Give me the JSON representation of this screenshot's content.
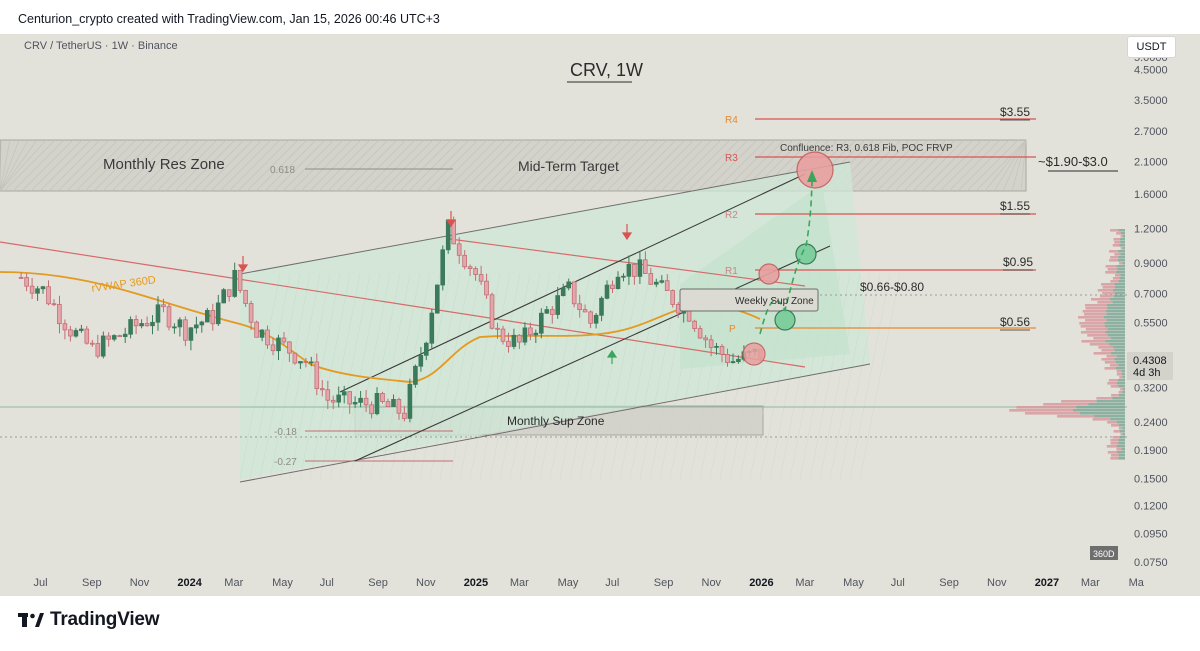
{
  "header": {
    "credit": "Centurion_crypto created with TradingView.com, Jan 15, 2026 00:46 UTC+3",
    "pair": "CRV / TetherUS · 1W · Binance",
    "currency_button": "USDT"
  },
  "footer": {
    "brand": "TradingView"
  },
  "price_badge": {
    "price": "0.4308",
    "countdown": "4d 3h",
    "indicator_tag": "360D"
  },
  "colors": {
    "background": "#e3e2da",
    "up_candle": "#3b7a5a",
    "down_candle": "#c26d74",
    "channel_fill": "#bfe3cc",
    "vwap": "#e39a1f",
    "pivot_red": "#d9534f",
    "pivot_orange": "#e8872f"
  },
  "annotations": {
    "title": "CRV, 1W",
    "monthly_res_zone": "Monthly Res Zone",
    "mid_term_target": "Mid-Term Target",
    "confluence": "Confluence: R3, 0.618 Fib, POC FRVP",
    "target_range": "~$1.90-$3.0",
    "weekly_sup_zone": "Weekly Sup Zone",
    "monthly_sup_zone": "Monthly Sup Zone",
    "vwap_label": "rVWAP 360D",
    "zone_range": "$0.66-$0.80",
    "fib_618": "0.618",
    "fib_m018": "-0.18",
    "fib_m027": "-0.27",
    "levels": [
      {
        "pivot": "R4",
        "value": "$3.55"
      },
      {
        "pivot": "R3",
        "value": ""
      },
      {
        "pivot": "R2",
        "value": "$1.55"
      },
      {
        "pivot": "R1",
        "value": "$0.95"
      },
      {
        "pivot": "P",
        "value": "$0.56"
      }
    ]
  },
  "chart_data": {
    "type": "candlestick",
    "title": "CRV, 1W",
    "y_scale": "log",
    "ylim": [
      0.068,
      7.0
    ],
    "y_ticks": [
      "5.0000",
      "4.5000",
      "3.5000",
      "2.7000",
      "2.1000",
      "1.6000",
      "1.2000",
      "0.9000",
      "0.7000",
      "0.5500",
      "0.4308",
      "0.3200",
      "0.2400",
      "0.1900",
      "0.1500",
      "0.1200",
      "0.0950",
      "0.0750"
    ],
    "x_ticks": [
      "Jul",
      "Sep",
      "Nov",
      "2024",
      "Mar",
      "May",
      "Jul",
      "Sep",
      "Nov",
      "2025",
      "Mar",
      "May",
      "Jul",
      "Sep",
      "Nov",
      "2026",
      "Mar",
      "May",
      "Jul",
      "Sep",
      "Nov",
      "2027",
      "Mar",
      "Ma"
    ],
    "last_price": 0.4308,
    "series": [
      {
        "name": "CRV / TetherUS",
        "points": [
          {
            "date": "2023-06-05",
            "close": 0.8
          },
          {
            "date": "2023-07-03",
            "close": 0.72
          },
          {
            "date": "2023-08-07",
            "close": 0.52
          },
          {
            "date": "2023-09-04",
            "close": 0.44
          },
          {
            "date": "2023-10-02",
            "close": 0.48
          },
          {
            "date": "2023-11-06",
            "close": 0.55
          },
          {
            "date": "2023-12-04",
            "close": 0.6
          },
          {
            "date": "2024-01-01",
            "close": 0.52
          },
          {
            "date": "2024-02-05",
            "close": 0.58
          },
          {
            "date": "2024-03-04",
            "close": 0.8
          },
          {
            "date": "2024-04-01",
            "close": 0.52
          },
          {
            "date": "2024-05-06",
            "close": 0.45
          },
          {
            "date": "2024-06-03",
            "close": 0.4
          },
          {
            "date": "2024-07-01",
            "close": 0.29
          },
          {
            "date": "2024-08-05",
            "close": 0.28
          },
          {
            "date": "2024-09-02",
            "close": 0.28
          },
          {
            "date": "2024-10-07",
            "close": 0.26
          },
          {
            "date": "2024-11-04",
            "close": 0.5
          },
          {
            "date": "2024-12-02",
            "close": 1.2
          },
          {
            "date": "2025-01-06",
            "close": 0.82
          },
          {
            "date": "2025-02-03",
            "close": 0.5
          },
          {
            "date": "2025-03-03",
            "close": 0.46
          },
          {
            "date": "2025-04-07",
            "close": 0.6
          },
          {
            "date": "2025-05-05",
            "close": 0.72
          },
          {
            "date": "2025-06-02",
            "close": 0.55
          },
          {
            "date": "2025-07-07",
            "close": 0.88
          },
          {
            "date": "2025-08-04",
            "close": 0.85
          },
          {
            "date": "2025-09-01",
            "close": 0.72
          },
          {
            "date": "2025-10-06",
            "close": 0.6
          },
          {
            "date": "2025-11-03",
            "close": 0.45
          },
          {
            "date": "2025-12-01",
            "close": 0.4
          },
          {
            "date": "2026-01-12",
            "close": 0.4308
          }
        ]
      }
    ]
  }
}
